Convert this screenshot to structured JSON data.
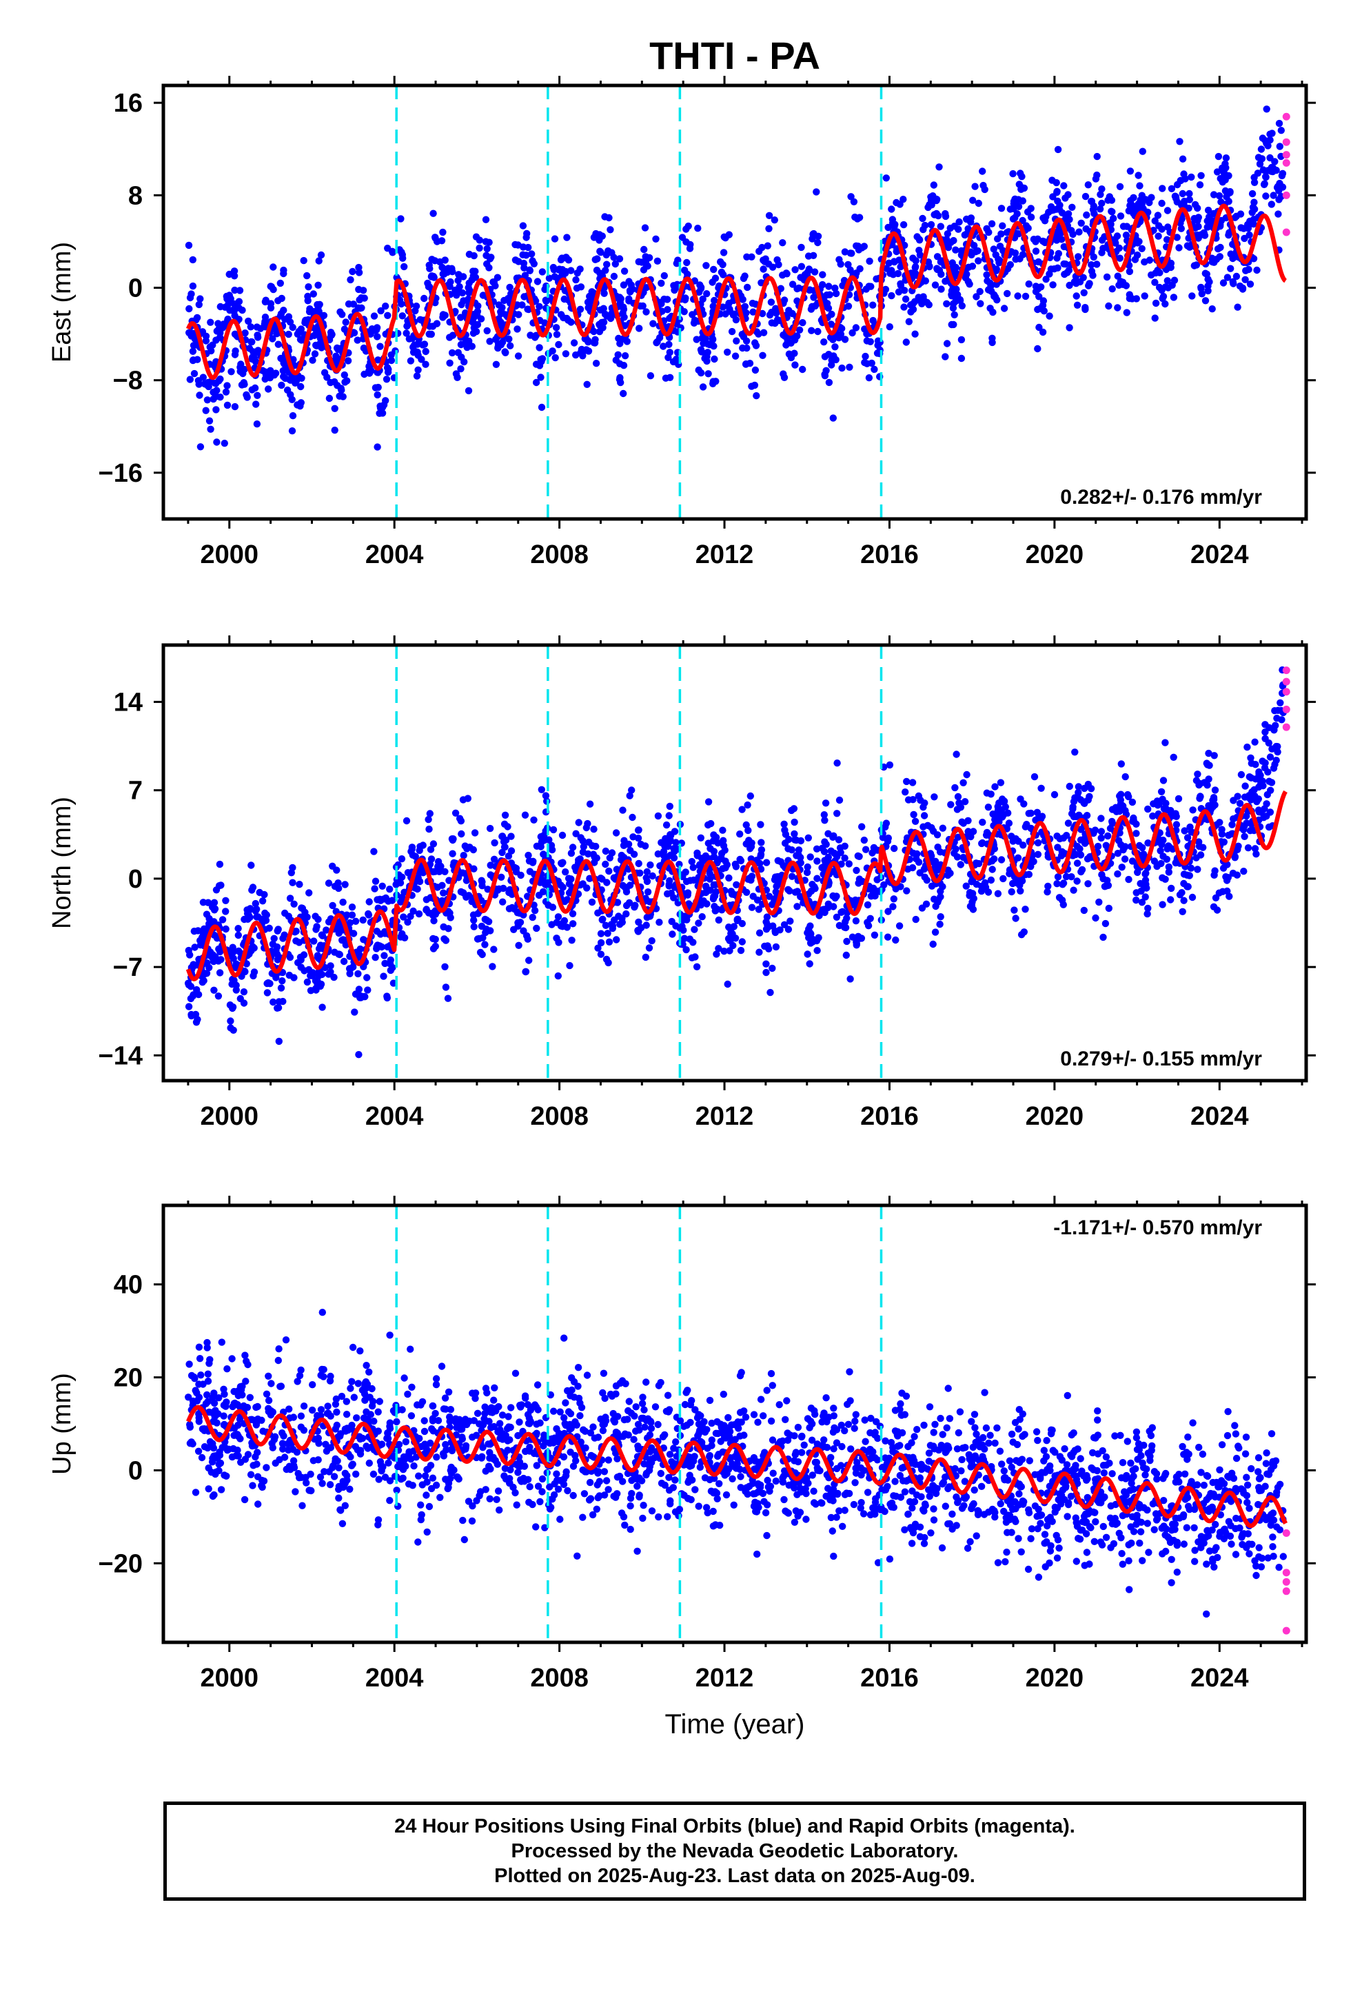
{
  "title": "THTI - PA",
  "colors": {
    "final_orbits": "#0000ff",
    "rapid_orbits": "#ff33cc",
    "model": "#ff0000",
    "offsets": "#00e5ee"
  },
  "xlabel": "Time (year)",
  "footer": {
    "line1": "24 Hour Positions Using Final Orbits (blue) and Rapid Orbits (magenta).",
    "line2": "Processed by the Nevada Geodetic Laboratory.",
    "line3": "Plotted on 2025-Aug-23. Last data on 2025-Aug-09."
  },
  "chart_data": [
    {
      "type": "scatter",
      "title": "THTI - PA",
      "xlabel": "",
      "ylabel": "East (mm)",
      "xlim": [
        1998.4,
        2026.1
      ],
      "ylim": [
        -20,
        17.5
      ],
      "xticks": [
        2000,
        2004,
        2008,
        2012,
        2016,
        2020,
        2024
      ],
      "yticks": [
        -16,
        -8,
        0,
        8,
        16
      ],
      "grid": false,
      "offset_lines": [
        2004.05,
        2007.72,
        2010.92,
        2015.8
      ],
      "rate_label": "0.282+/- 0.176 mm/yr",
      "rate_label_position": "bottom-right",
      "series": [
        {
          "name": "Final Orbits (blue)",
          "color": "#0000ff",
          "model_nodes": [
            [
              1999.0,
              -5.5
            ],
            [
              2004.0,
              -4.5
            ],
            [
              2004.05,
              -1.8
            ],
            [
              2015.78,
              -1.5
            ],
            [
              2015.8,
              2.2
            ],
            [
              2024.5,
              4.8
            ],
            [
              2025.6,
              3.0
            ]
          ],
          "scatter_sd": 2.6,
          "data_start": 1999.0,
          "data_end": 2025.55
        },
        {
          "name": "Rapid Orbits (magenta)",
          "color": "#ff33cc",
          "points": [
            [
              2025.62,
              14.8
            ],
            [
              2025.62,
              12.6
            ],
            [
              2025.62,
              11.5
            ],
            [
              2025.62,
              10.8
            ],
            [
              2025.62,
              8.0
            ],
            [
              2025.62,
              4.8
            ]
          ]
        },
        {
          "name": "model",
          "color": "#ff0000",
          "model_nodes": [
            [
              1999.0,
              -5.5
            ],
            [
              2004.0,
              -4.5
            ],
            [
              2004.05,
              -1.8
            ],
            [
              2015.78,
              -1.5
            ],
            [
              2015.8,
              2.2
            ],
            [
              2024.5,
              4.8
            ],
            [
              2025.6,
              3.0
            ]
          ],
          "seasonal_amplitude": 2.4,
          "seasonal_phase": 0.15
        }
      ]
    },
    {
      "type": "scatter",
      "xlabel": "",
      "ylabel": "North (mm)",
      "xlim": [
        1998.4,
        2026.1
      ],
      "ylim": [
        -16,
        18.5
      ],
      "xticks": [
        2000,
        2004,
        2008,
        2012,
        2016,
        2020,
        2024
      ],
      "yticks": [
        -14,
        -7,
        0,
        7,
        14
      ],
      "grid": false,
      "offset_lines": [
        2004.05,
        2007.72,
        2010.92,
        2015.8
      ],
      "rate_label": "0.279+/- 0.155 mm/yr",
      "rate_label_position": "bottom-right",
      "series": [
        {
          "name": "Final Orbits (blue)",
          "color": "#0000ff",
          "model_nodes": [
            [
              1999.0,
              -6.0
            ],
            [
              2004.0,
              -4.5
            ],
            [
              2004.05,
              -0.5
            ],
            [
              2015.78,
              -0.8
            ],
            [
              2015.8,
              1.5
            ],
            [
              2024.4,
              3.5
            ],
            [
              2025.6,
              8.0
            ]
          ],
          "scatter_sd": 2.3,
          "data_start": 1999.0,
          "data_end": 2025.55
        },
        {
          "name": "Rapid Orbits (magenta)",
          "color": "#ff33cc",
          "points": [
            [
              2025.62,
              16.5
            ],
            [
              2025.62,
              15.6
            ],
            [
              2025.62,
              14.8
            ],
            [
              2025.62,
              13.4
            ],
            [
              2025.62,
              12.0
            ]
          ]
        },
        {
          "name": "model",
          "color": "#ff0000",
          "model_nodes": [
            [
              1999.0,
              -6.0
            ],
            [
              2004.0,
              -4.5
            ],
            [
              2004.05,
              -0.5
            ],
            [
              2015.78,
              -0.8
            ],
            [
              2015.8,
              1.5
            ],
            [
              2024.4,
              3.5
            ],
            [
              2025.6,
              5.0
            ]
          ],
          "seasonal_amplitude": 2.0,
          "seasonal_phase": 0.6
        }
      ]
    },
    {
      "type": "scatter",
      "xlabel": "Time (year)",
      "ylabel": "Up (mm)",
      "xlim": [
        1998.4,
        2026.1
      ],
      "ylim": [
        -37,
        57
      ],
      "xticks": [
        2000,
        2004,
        2008,
        2012,
        2016,
        2020,
        2024
      ],
      "yticks": [
        -20,
        0,
        20,
        40
      ],
      "grid": false,
      "offset_lines": [
        2004.05,
        2007.72,
        2010.92,
        2015.8
      ],
      "rate_label": "-1.171+/- 0.570 mm/yr",
      "rate_label_position": "top-right",
      "series": [
        {
          "name": "Final Orbits (blue)",
          "color": "#0000ff",
          "model_nodes": [
            [
              1999.0,
              10.5
            ],
            [
              2004.0,
              6.0
            ],
            [
              2015.8,
              0.5
            ],
            [
              2025.6,
              -9.5
            ]
          ],
          "scatter_sd": 7.0,
          "data_start": 1999.0,
          "data_end": 2025.55
        },
        {
          "name": "Rapid Orbits (magenta)",
          "color": "#ff33cc",
          "points": [
            [
              2025.62,
              -13.5
            ],
            [
              2025.62,
              -22.0
            ],
            [
              2025.62,
              -24.0
            ],
            [
              2025.62,
              -26.0
            ],
            [
              2025.62,
              -34.5
            ]
          ]
        },
        {
          "name": "model",
          "color": "#ff0000",
          "model_nodes": [
            [
              1999.0,
              10.5
            ],
            [
              2004.0,
              6.0
            ],
            [
              2015.8,
              0.5
            ],
            [
              2025.6,
              -9.5
            ]
          ],
          "seasonal_amplitude": 3.3,
          "seasonal_phase": 0.0
        }
      ]
    }
  ]
}
